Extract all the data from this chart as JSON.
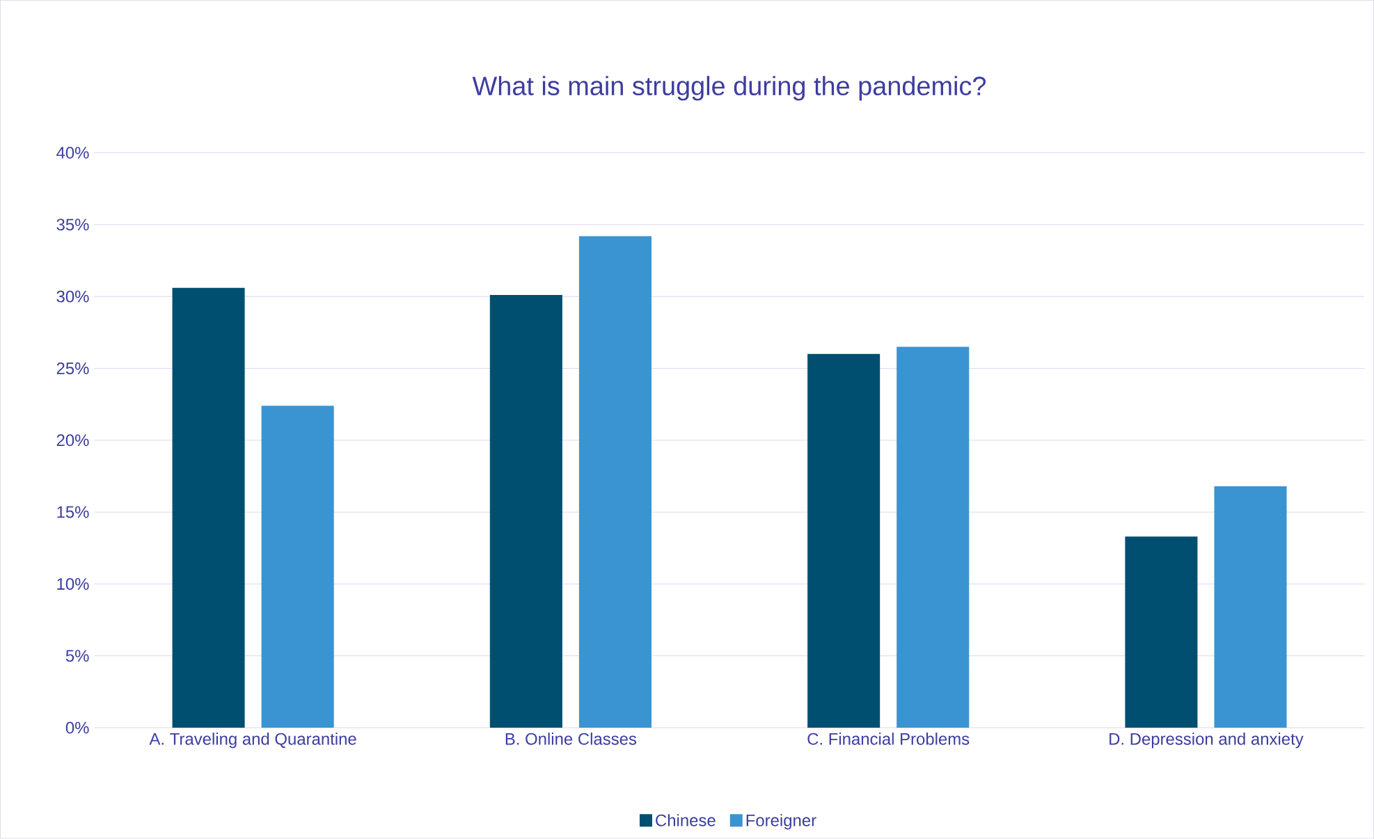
{
  "chart_data": {
    "type": "bar",
    "title": "What is main struggle during the pandemic?",
    "categories": [
      "A. Traveling and Quarantine",
      "B. Online Classes",
      "C. Financial Problems",
      "D. Depression and anxiety"
    ],
    "series": [
      {
        "name": "Chinese",
        "color": "#004f71",
        "values": [
          30.6,
          30.1,
          26.0,
          13.3
        ]
      },
      {
        "name": "Foreigner",
        "color": "#3a94d2",
        "values": [
          22.4,
          34.2,
          26.5,
          16.8
        ]
      }
    ],
    "ylim": [
      0,
      40
    ],
    "yticks": [
      {
        "value": 0,
        "label": "0%"
      },
      {
        "value": 5,
        "label": "5%"
      },
      {
        "value": 10,
        "label": "10%"
      },
      {
        "value": 15,
        "label": "15%"
      },
      {
        "value": 20,
        "label": "20%"
      },
      {
        "value": 25,
        "label": "25%"
      },
      {
        "value": 30,
        "label": "30%"
      },
      {
        "value": 35,
        "label": "35%"
      },
      {
        "value": 40,
        "label": "40%"
      }
    ],
    "grid": "y",
    "legend": "bottom"
  }
}
